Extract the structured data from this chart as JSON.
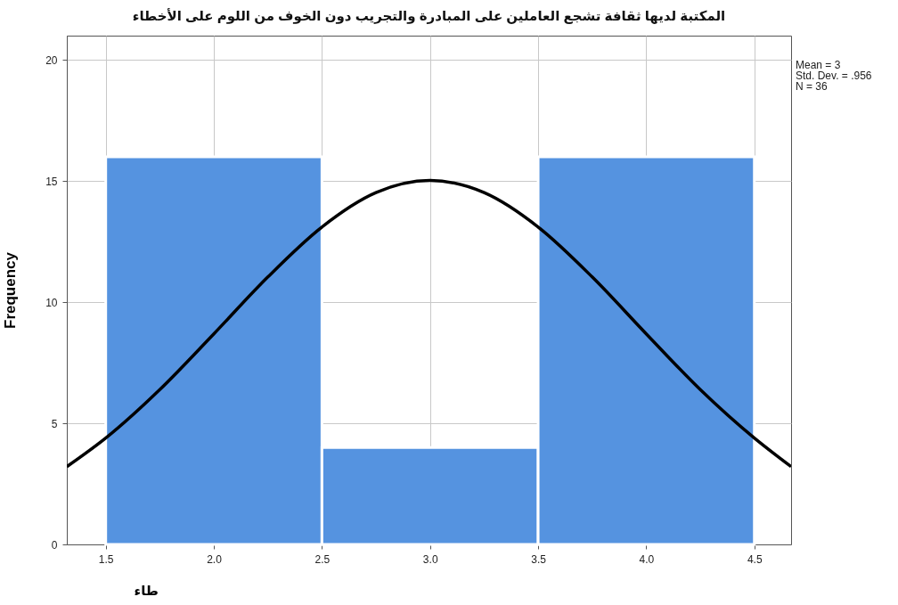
{
  "chart_data": {
    "type": "histogram",
    "title": "المكتبة لديها ثقافة تشجع العاملين على المبادرة والتجريب دون الخوف من اللوم على الأخطاء",
    "xlabel": "طاء",
    "ylabel": "Frequency",
    "bins": [
      1.5,
      2.5,
      3.5,
      4.5
    ],
    "values": [
      16,
      4,
      16
    ],
    "color": "#5593e0",
    "series": [
      {
        "type": "line",
        "color": "#000000",
        "x": [
          1.32,
          1.5,
          1.75,
          2,
          2.25,
          2.5,
          2.75,
          3,
          3.25,
          3.5,
          3.75,
          4,
          4.25,
          4.5,
          4.67
        ],
        "values": [
          3.21,
          4.39,
          6.39,
          8.69,
          11.04,
          13.1,
          14.52,
          15.02,
          14.52,
          13.1,
          11.04,
          8.69,
          6.39,
          4.39,
          3.21
        ]
      }
    ],
    "xlim": [
      1.32,
      4.67
    ],
    "xticks": [
      1.5,
      {
        "value": 2,
        "label": "2.0"
      },
      2.5,
      {
        "value": 3,
        "label": "3.0"
      },
      3.5,
      {
        "value": 4,
        "label": "4.0"
      },
      4.5
    ],
    "ylim": [
      0,
      21
    ],
    "yticks": [
      0,
      5,
      10,
      15,
      20
    ],
    "grid": true,
    "annotations": [
      "Mean = 3",
      "Std. Dev. = .956",
      "N = 36"
    ]
  }
}
